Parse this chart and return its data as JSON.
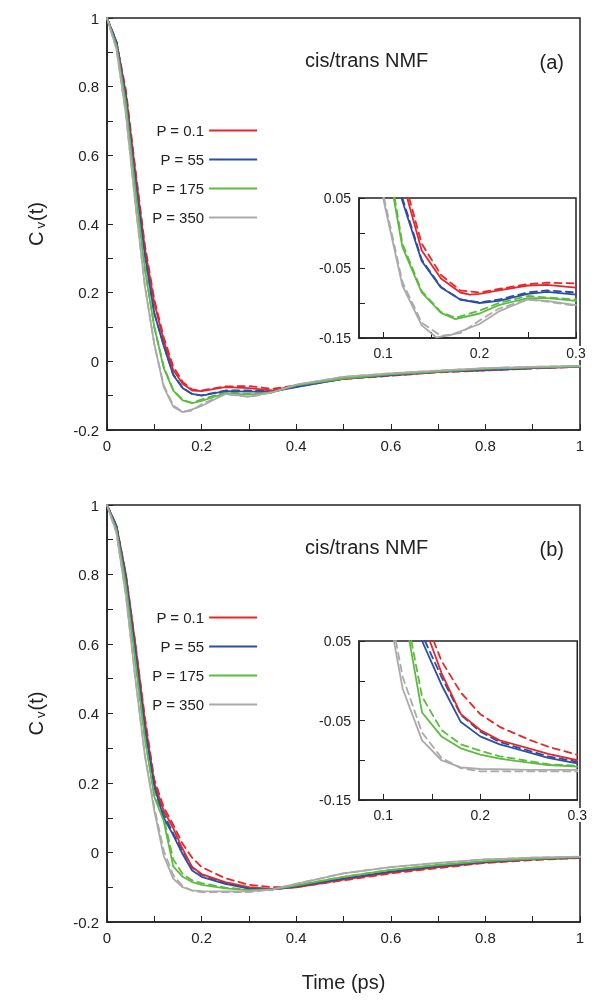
{
  "chart_data": [
    {
      "type": "line",
      "ylabel": "C$_{v}$(t)",
      "annotations": [
        "cis/trans NMF",
        "(a)"
      ],
      "legend": "top left",
      "xlim": [
        0,
        1
      ],
      "ylim": [
        -0.2,
        1
      ],
      "xticks": [
        0,
        {
          "value": 0.1,
          "label": null
        },
        0.2,
        {
          "value": 0.3,
          "label": null
        },
        0.4,
        {
          "value": 0.5,
          "label": null
        },
        0.6,
        {
          "value": 0.7,
          "label": null
        },
        0.8,
        {
          "value": 0.9,
          "label": null
        },
        1
      ],
      "yticks": [
        -0.2,
        {
          "value": -0.1,
          "label": null
        },
        0,
        {
          "value": 0.1,
          "label": null
        },
        0.2,
        {
          "value": 0.3,
          "label": null
        },
        0.4,
        {
          "value": 0.5,
          "label": null
        },
        0.6,
        {
          "value": 0.7,
          "label": null
        },
        0.8,
        {
          "value": 0.9,
          "label": null
        },
        1
      ],
      "x": [
        0,
        0.02,
        0.04,
        0.06,
        0.08,
        0.1,
        0.12,
        0.14,
        0.16,
        0.18,
        0.2,
        0.25,
        0.3,
        0.35,
        0.4,
        0.5,
        0.6,
        0.7,
        0.8,
        0.9,
        1
      ],
      "series": [
        {
          "color": "#e8262a",
          "line_style": "dashed",
          "values": [
            1,
            0.93,
            0.79,
            0.56,
            0.34,
            0.18,
            0.07,
            -0.015,
            -0.06,
            -0.082,
            -0.085,
            -0.073,
            -0.072,
            -0.08,
            -0.07,
            -0.052,
            -0.042,
            -0.032,
            -0.027,
            -0.021,
            -0.016
          ]
        },
        {
          "color": "#2a4fa6",
          "line_style": "dashed",
          "values": [
            1,
            0.93,
            0.77,
            0.53,
            0.31,
            0.14,
            0.047,
            -0.038,
            -0.077,
            -0.095,
            -0.099,
            -0.085,
            -0.085,
            -0.086,
            -0.074,
            -0.051,
            -0.041,
            -0.031,
            -0.026,
            -0.02,
            -0.015
          ]
        },
        {
          "color": "#5dbb3f",
          "line_style": "dashed",
          "values": [
            1,
            0.92,
            0.75,
            0.5,
            0.27,
            0.1,
            -0.015,
            -0.083,
            -0.113,
            -0.121,
            -0.111,
            -0.09,
            -0.095,
            -0.09,
            -0.07,
            -0.05,
            -0.038,
            -0.03,
            -0.022,
            -0.018,
            -0.015
          ]
        },
        {
          "color": "#aaaaaa",
          "line_style": "dashed",
          "values": [
            1,
            0.91,
            0.72,
            0.46,
            0.22,
            0.05,
            -0.07,
            -0.128,
            -0.147,
            -0.143,
            -0.125,
            -0.095,
            -0.104,
            -0.09,
            -0.068,
            -0.045,
            -0.035,
            -0.027,
            -0.02,
            -0.016,
            -0.013
          ]
        },
        {
          "name": "P = 0.1",
          "color": "#e8262a",
          "line_style": "solid",
          "values": [
            1,
            0.93,
            0.78,
            0.55,
            0.33,
            0.17,
            0.06,
            -0.025,
            -0.065,
            -0.085,
            -0.087,
            -0.075,
            -0.078,
            -0.085,
            -0.07,
            -0.05,
            -0.04,
            -0.03,
            -0.025,
            -0.02,
            -0.015
          ]
        },
        {
          "name": "P = 55",
          "color": "#2a4fa6",
          "line_style": "solid",
          "values": [
            1,
            0.93,
            0.77,
            0.53,
            0.31,
            0.14,
            0.045,
            -0.04,
            -0.078,
            -0.095,
            -0.1,
            -0.087,
            -0.088,
            -0.088,
            -0.075,
            -0.05,
            -0.04,
            -0.03,
            -0.025,
            -0.02,
            -0.015
          ]
        },
        {
          "name": "P = 175",
          "color": "#5dbb3f",
          "line_style": "solid",
          "values": [
            1,
            0.92,
            0.75,
            0.5,
            0.27,
            0.1,
            -0.02,
            -0.085,
            -0.114,
            -0.122,
            -0.115,
            -0.093,
            -0.097,
            -0.09,
            -0.07,
            -0.05,
            -0.038,
            -0.03,
            -0.022,
            -0.018,
            -0.015
          ]
        },
        {
          "name": "P = 350",
          "color": "#aaaaaa",
          "line_style": "solid",
          "values": [
            1,
            0.91,
            0.72,
            0.46,
            0.22,
            0.05,
            -0.075,
            -0.132,
            -0.148,
            -0.14,
            -0.13,
            -0.095,
            -0.103,
            -0.09,
            -0.068,
            -0.045,
            -0.035,
            -0.027,
            -0.02,
            -0.016,
            -0.013
          ]
        }
      ]
    },
    {
      "type": "line",
      "xlim": [
        0.075,
        0.3
      ],
      "ylim": [
        -0.15,
        0.05
      ],
      "xticks": [
        0.1,
        {
          "value": 0.15,
          "label": null
        },
        0.2,
        {
          "value": 0.25,
          "label": null
        },
        0.3
      ],
      "yticks": [
        -0.15,
        {
          "value": -0.1,
          "label": null
        },
        -0.05,
        {
          "value": 0,
          "label": null
        },
        0.05
      ],
      "series": [
        {
          "color": "#e8262a",
          "line_style": "dashed",
          "x": [
            0.127,
            0.14,
            0.16,
            0.18,
            0.2,
            0.22,
            0.25,
            0.27,
            0.3
          ],
          "values": [
            0.05,
            -0.015,
            -0.06,
            -0.082,
            -0.085,
            -0.08,
            -0.073,
            -0.071,
            -0.072
          ]
        },
        {
          "color": "#2a4fa6",
          "line_style": "dashed",
          "x": [
            0.12,
            0.14,
            0.16,
            0.18,
            0.2,
            0.22,
            0.25,
            0.27,
            0.3
          ],
          "values": [
            0.05,
            -0.038,
            -0.077,
            -0.095,
            -0.099,
            -0.095,
            -0.085,
            -0.082,
            -0.085
          ]
        },
        {
          "color": "#5dbb3f",
          "line_style": "dashed",
          "x": [
            0.112,
            0.12,
            0.14,
            0.16,
            0.175,
            0.2,
            0.22,
            0.25,
            0.27,
            0.3
          ],
          "values": [
            0.05,
            -0.015,
            -0.083,
            -0.113,
            -0.121,
            -0.111,
            -0.1,
            -0.09,
            -0.092,
            -0.095
          ]
        },
        {
          "color": "#aaaaaa",
          "line_style": "dashed",
          "x": [
            0.101,
            0.12,
            0.14,
            0.16,
            0.18,
            0.2,
            0.22,
            0.25,
            0.27,
            0.3
          ],
          "values": [
            0.05,
            -0.07,
            -0.128,
            -0.147,
            -0.143,
            -0.125,
            -0.108,
            -0.095,
            -0.098,
            -0.104
          ]
        },
        {
          "color": "#e8262a",
          "line_style": "solid",
          "x": [
            0.125,
            0.14,
            0.16,
            0.18,
            0.19,
            0.2,
            0.22,
            0.25,
            0.27,
            0.3
          ],
          "values": [
            0.05,
            -0.025,
            -0.065,
            -0.085,
            -0.088,
            -0.087,
            -0.082,
            -0.075,
            -0.074,
            -0.078
          ]
        },
        {
          "color": "#2a4fa6",
          "line_style": "solid",
          "x": [
            0.119,
            0.14,
            0.16,
            0.18,
            0.2,
            0.22,
            0.25,
            0.27,
            0.3
          ],
          "values": [
            0.05,
            -0.04,
            -0.078,
            -0.095,
            -0.1,
            -0.097,
            -0.087,
            -0.084,
            -0.088
          ]
        },
        {
          "color": "#5dbb3f",
          "line_style": "solid",
          "x": [
            0.111,
            0.12,
            0.14,
            0.16,
            0.175,
            0.2,
            0.22,
            0.25,
            0.27,
            0.3
          ],
          "values": [
            0.05,
            -0.02,
            -0.085,
            -0.114,
            -0.123,
            -0.115,
            -0.103,
            -0.093,
            -0.093,
            -0.097
          ]
        },
        {
          "color": "#aaaaaa",
          "line_style": "solid",
          "x": [
            0.1,
            0.12,
            0.14,
            0.155,
            0.17,
            0.2,
            0.22,
            0.25,
            0.27,
            0.3
          ],
          "values": [
            0.05,
            -0.075,
            -0.132,
            -0.149,
            -0.146,
            -0.13,
            -0.112,
            -0.095,
            -0.097,
            -0.103
          ]
        }
      ]
    },
    {
      "type": "line",
      "xlabel": "Time (ps)",
      "ylabel": "C$_{v}$(t)",
      "annotations": [
        "cis/trans NMF",
        "(b)"
      ],
      "legend": "top left",
      "xlim": [
        0,
        1
      ],
      "ylim": [
        -0.2,
        1
      ],
      "xticks": [
        0,
        {
          "value": 0.1,
          "label": null
        },
        0.2,
        {
          "value": 0.3,
          "label": null
        },
        0.4,
        {
          "value": 0.5,
          "label": null
        },
        0.6,
        {
          "value": 0.7,
          "label": null
        },
        0.8,
        {
          "value": 0.9,
          "label": null
        },
        1
      ],
      "yticks": [
        -0.2,
        {
          "value": -0.1,
          "label": null
        },
        0,
        {
          "value": 0.1,
          "label": null
        },
        0.2,
        {
          "value": 0.3,
          "label": null
        },
        0.4,
        {
          "value": 0.5,
          "label": null
        },
        0.6,
        {
          "value": 0.7,
          "label": null
        },
        0.8,
        {
          "value": 0.9,
          "label": null
        },
        1
      ],
      "x": [
        0,
        0.02,
        0.04,
        0.06,
        0.08,
        0.1,
        0.12,
        0.14,
        0.16,
        0.18,
        0.2,
        0.25,
        0.3,
        0.35,
        0.4,
        0.5,
        0.6,
        0.7,
        0.8,
        0.9,
        1
      ],
      "series": [
        {
          "color": "#e8262a",
          "line_style": "dashed",
          "values": [
            1,
            0.94,
            0.8,
            0.6,
            0.39,
            0.21,
            0.13,
            0.08,
            0.025,
            -0.015,
            -0.042,
            -0.074,
            -0.093,
            -0.1,
            -0.1,
            -0.08,
            -0.06,
            -0.045,
            -0.03,
            -0.022,
            -0.016
          ]
        },
        {
          "color": "#2a4fa6",
          "line_style": "dashed",
          "values": [
            1,
            0.94,
            0.79,
            0.58,
            0.36,
            0.19,
            0.11,
            0.055,
            0.005,
            -0.043,
            -0.064,
            -0.088,
            -0.102,
            -0.106,
            -0.099,
            -0.076,
            -0.056,
            -0.041,
            -0.028,
            -0.02,
            -0.015
          ]
        },
        {
          "color": "#5dbb3f",
          "line_style": "dashed",
          "values": [
            1,
            0.93,
            0.77,
            0.55,
            0.33,
            0.17,
            0.1,
            -0.02,
            -0.062,
            -0.08,
            -0.088,
            -0.101,
            -0.107,
            -0.106,
            -0.095,
            -0.07,
            -0.05,
            -0.036,
            -0.025,
            -0.018,
            -0.013
          ]
        },
        {
          "color": "#aaaaaa",
          "line_style": "dashed",
          "values": [
            1,
            0.92,
            0.74,
            0.5,
            0.28,
            0.13,
            0.005,
            -0.065,
            -0.097,
            -0.11,
            -0.114,
            -0.114,
            -0.114,
            -0.106,
            -0.09,
            -0.06,
            -0.042,
            -0.03,
            -0.02,
            -0.015,
            -0.012
          ]
        },
        {
          "name": "P = 0.1",
          "color": "#e8262a",
          "line_style": "solid",
          "values": [
            1,
            0.94,
            0.8,
            0.6,
            0.38,
            0.2,
            0.12,
            0.07,
            0.01,
            -0.042,
            -0.062,
            -0.085,
            -0.1,
            -0.105,
            -0.1,
            -0.078,
            -0.058,
            -0.042,
            -0.028,
            -0.02,
            -0.015
          ]
        },
        {
          "name": "P = 55",
          "color": "#2a4fa6",
          "line_style": "solid",
          "values": [
            1,
            0.94,
            0.79,
            0.58,
            0.36,
            0.19,
            0.1,
            0.05,
            -0.005,
            -0.052,
            -0.07,
            -0.09,
            -0.104,
            -0.106,
            -0.098,
            -0.075,
            -0.055,
            -0.04,
            -0.027,
            -0.019,
            -0.014
          ]
        },
        {
          "name": "P = 175",
          "color": "#5dbb3f",
          "line_style": "solid",
          "values": [
            1,
            0.93,
            0.77,
            0.55,
            0.33,
            0.16,
            0.09,
            -0.04,
            -0.07,
            -0.085,
            -0.093,
            -0.103,
            -0.108,
            -0.106,
            -0.095,
            -0.07,
            -0.05,
            -0.036,
            -0.025,
            -0.018,
            -0.013
          ]
        },
        {
          "name": "P = 350",
          "color": "#aaaaaa",
          "line_style": "solid",
          "values": [
            1,
            0.92,
            0.74,
            0.5,
            0.28,
            0.12,
            -0.01,
            -0.075,
            -0.1,
            -0.109,
            -0.111,
            -0.112,
            -0.112,
            -0.106,
            -0.09,
            -0.06,
            -0.042,
            -0.03,
            -0.02,
            -0.015,
            -0.012
          ]
        }
      ]
    },
    {
      "type": "line",
      "xlim": [
        0.075,
        0.3
      ],
      "ylim": [
        -0.15,
        0.05
      ],
      "xticks": [
        0.1,
        {
          "value": 0.15,
          "label": null
        },
        0.2,
        {
          "value": 0.25,
          "label": null
        },
        0.3
      ],
      "yticks": [
        -0.15,
        {
          "value": -0.1,
          "label": null
        },
        -0.05,
        {
          "value": 0,
          "label": null
        },
        0.05
      ],
      "series": [
        {
          "color": "#e8262a",
          "line_style": "dashed",
          "x": [
            0.152,
            0.16,
            0.18,
            0.2,
            0.22,
            0.25,
            0.27,
            0.3
          ],
          "values": [
            0.05,
            0.025,
            -0.015,
            -0.042,
            -0.058,
            -0.074,
            -0.083,
            -0.093
          ]
        },
        {
          "color": "#2a4fa6",
          "line_style": "dashed",
          "x": [
            0.143,
            0.16,
            0.18,
            0.2,
            0.22,
            0.25,
            0.27,
            0.3
          ],
          "values": [
            0.05,
            0.005,
            -0.043,
            -0.064,
            -0.077,
            -0.088,
            -0.095,
            -0.102
          ]
        },
        {
          "color": "#5dbb3f",
          "line_style": "dashed",
          "x": [
            0.129,
            0.14,
            0.16,
            0.18,
            0.2,
            0.22,
            0.25,
            0.27,
            0.3
          ],
          "values": [
            0.05,
            -0.02,
            -0.062,
            -0.08,
            -0.088,
            -0.095,
            -0.101,
            -0.105,
            -0.107
          ]
        },
        {
          "color": "#aaaaaa",
          "line_style": "dashed",
          "x": [
            0.113,
            0.12,
            0.14,
            0.16,
            0.18,
            0.2,
            0.25,
            0.3
          ],
          "values": [
            0.05,
            0.005,
            -0.065,
            -0.097,
            -0.11,
            -0.114,
            -0.114,
            -0.114
          ]
        },
        {
          "color": "#e8262a",
          "line_style": "solid",
          "x": [
            0.148,
            0.16,
            0.18,
            0.2,
            0.22,
            0.25,
            0.27,
            0.3
          ],
          "values": [
            0.05,
            0.01,
            -0.042,
            -0.062,
            -0.075,
            -0.085,
            -0.092,
            -0.1
          ]
        },
        {
          "color": "#2a4fa6",
          "line_style": "solid",
          "x": [
            0.14,
            0.16,
            0.18,
            0.2,
            0.22,
            0.25,
            0.27,
            0.3
          ],
          "values": [
            0.05,
            -0.005,
            -0.052,
            -0.07,
            -0.08,
            -0.09,
            -0.097,
            -0.104
          ]
        },
        {
          "color": "#5dbb3f",
          "line_style": "solid",
          "x": [
            0.127,
            0.14,
            0.16,
            0.18,
            0.2,
            0.22,
            0.25,
            0.27,
            0.3
          ],
          "values": [
            0.05,
            -0.04,
            -0.07,
            -0.085,
            -0.093,
            -0.098,
            -0.103,
            -0.106,
            -0.108
          ]
        },
        {
          "color": "#aaaaaa",
          "line_style": "solid",
          "x": [
            0.111,
            0.12,
            0.14,
            0.16,
            0.18,
            0.2,
            0.25,
            0.3
          ],
          "values": [
            0.05,
            -0.01,
            -0.075,
            -0.1,
            -0.109,
            -0.111,
            -0.112,
            -0.112
          ]
        }
      ]
    }
  ]
}
